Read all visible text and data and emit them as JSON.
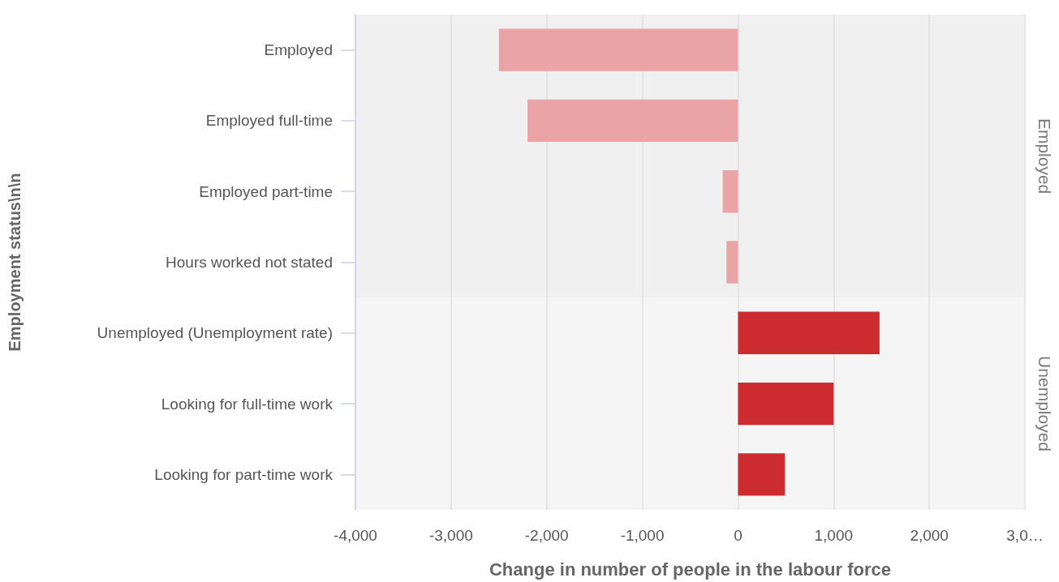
{
  "chart_data": {
    "type": "bar",
    "orientation": "horizontal",
    "xlabel": "Change in number of people in the labour force",
    "ylabel": "Employment status\\n\\n",
    "categories": [
      "Employed",
      "Employed full-time",
      "Employed part-time",
      "Hours worked not stated",
      "Unemployed (Unemployment rate)",
      "Looking for full-time work",
      "Looking for part-time work"
    ],
    "values": [
      -2500,
      -2200,
      -160,
      -120,
      1480,
      1000,
      490
    ],
    "colors": [
      "#eba4a6",
      "#eba4a6",
      "#eba4a6",
      "#eba4a6",
      "#cc2b30",
      "#cc2b30",
      "#cc2b30"
    ],
    "xlim": [
      -4000,
      3000
    ],
    "xticks": [
      {
        "value": -4000,
        "label": "-4,000"
      },
      {
        "value": -3000,
        "label": "-3,000"
      },
      {
        "value": -2000,
        "label": "-2,000"
      },
      {
        "value": -1000,
        "label": "-1,000"
      },
      0,
      {
        "value": 1000,
        "label": "1,000"
      },
      {
        "value": 2000,
        "label": "2,000"
      },
      {
        "value": 3000,
        "label": "3,0…"
      }
    ],
    "grid": "x",
    "bands": [
      {
        "axis": "y",
        "from": "Employed",
        "to": "Hours worked not stated",
        "label": "Employed",
        "color": "#f0f0f0"
      },
      {
        "axis": "y",
        "from": "Unemployed (Unemployment rate)",
        "to": "Looking for part-time work",
        "label": "Unemployed",
        "color": "#f5f5f5"
      }
    ]
  }
}
